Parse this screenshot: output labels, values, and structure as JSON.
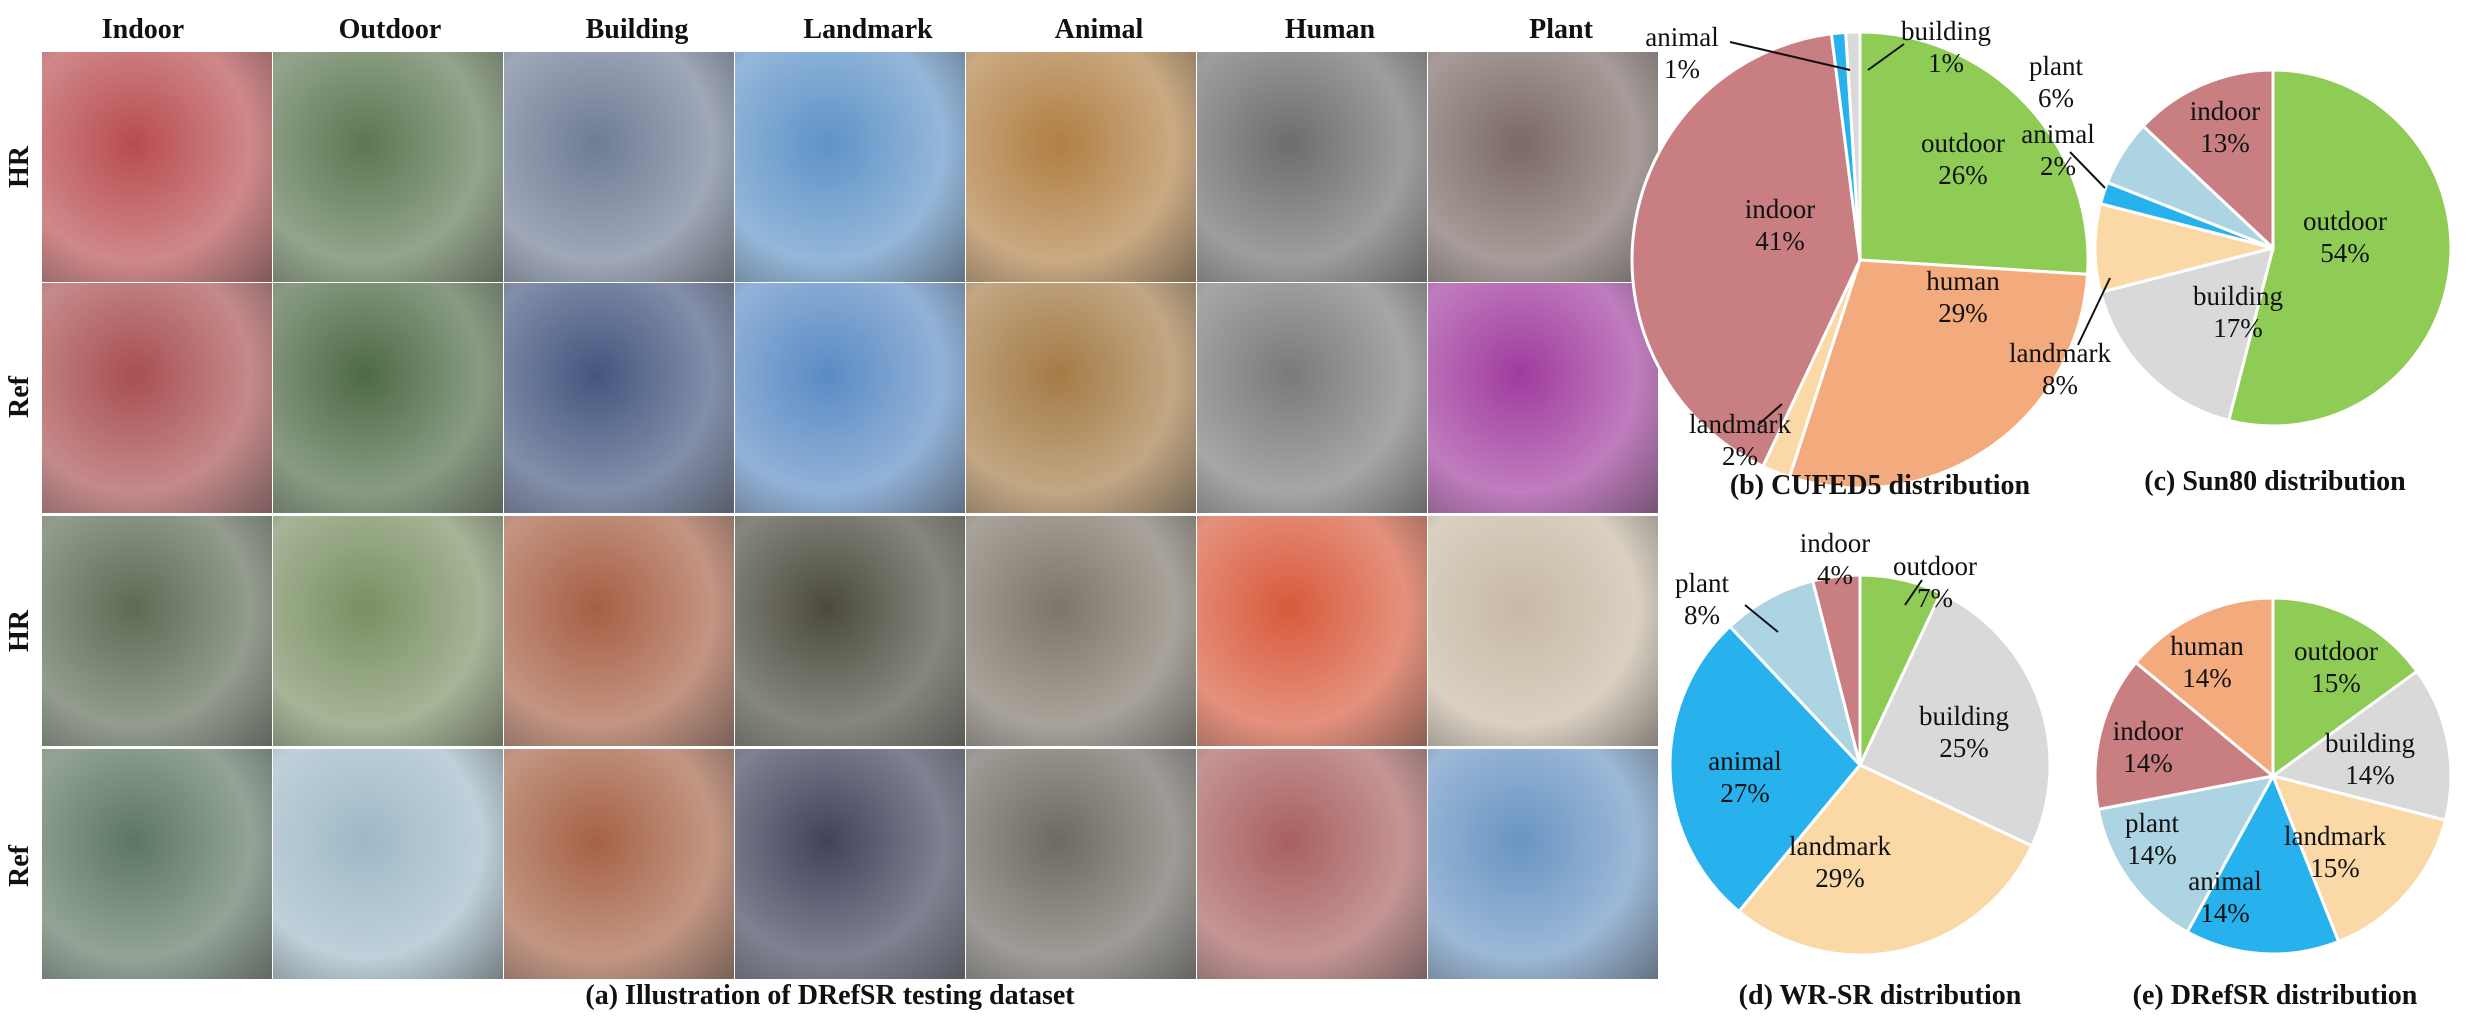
{
  "figure": {
    "columns": [
      "Indoor",
      "Outdoor",
      "Building",
      "Landmark",
      "Animal",
      "Human",
      "Plant"
    ],
    "rows": [
      "HR",
      "Ref",
      "HR",
      "Ref"
    ],
    "caption_a": "(a) Illustration of DRefSR testing dataset",
    "caption_b": "(b) CUFED5 distribution",
    "caption_c": "(c) Sun80 distribution",
    "caption_d": "(d) WR-SR distribution",
    "caption_e": "(e) DRefSR distribution",
    "thumb_colors": [
      [
        "#b84c4f",
        "#5d7752",
        "#6f7c95",
        "#5f93c7",
        "#b07f44",
        "#6d6d6d",
        "#7b6a66"
      ],
      [
        "#a84f51",
        "#4e6a45",
        "#44567f",
        "#5b8bc4",
        "#a47b46",
        "#7a7a78",
        "#a03b9e"
      ],
      [
        "#5d6b55",
        "#7a8f63",
        "#a65f44",
        "#4b4a3d",
        "#7d7568",
        "#d85a3c",
        "#c7b9a4"
      ],
      [
        "#5d7663",
        "#9fb9c7",
        "#a56245",
        "#40435b",
        "#6e6a62",
        "#a86060",
        "#6a95c3"
      ]
    ]
  },
  "chart_data": [
    {
      "type": "pie",
      "title": "(b) CUFED5 distribution",
      "slices": [
        {
          "label": "outdoor",
          "value": 26,
          "color": "#8ecc56"
        },
        {
          "label": "human",
          "value": 29,
          "color": "#f3aa7c"
        },
        {
          "label": "landmark",
          "value": 2,
          "color": "#fbd9a6"
        },
        {
          "label": "indoor",
          "value": 41,
          "color": "#c97f82"
        },
        {
          "label": "animal",
          "value": 1,
          "color": "#27b2ee"
        },
        {
          "label": "building",
          "value": 1,
          "color": "#d9d9d9"
        }
      ]
    },
    {
      "type": "pie",
      "title": "(c) Sun80 distribution",
      "slices": [
        {
          "label": "outdoor",
          "value": 54,
          "color": "#8ecc56"
        },
        {
          "label": "building",
          "value": 17,
          "color": "#d9d9d9"
        },
        {
          "label": "landmark",
          "value": 8,
          "color": "#fbd9a6"
        },
        {
          "label": "animal",
          "value": 2,
          "color": "#27b2ee"
        },
        {
          "label": "plant",
          "value": 6,
          "color": "#acd4e2"
        },
        {
          "label": "indoor",
          "value": 13,
          "color": "#c97f82"
        }
      ]
    },
    {
      "type": "pie",
      "title": "(d) WR-SR distribution",
      "slices": [
        {
          "label": "outdoor",
          "value": 7,
          "color": "#8ecc56"
        },
        {
          "label": "building",
          "value": 25,
          "color": "#d9d9d9"
        },
        {
          "label": "landmark",
          "value": 29,
          "color": "#fbd9a6"
        },
        {
          "label": "animal",
          "value": 27,
          "color": "#27b2ee"
        },
        {
          "label": "plant",
          "value": 8,
          "color": "#acd4e2"
        },
        {
          "label": "indoor",
          "value": 4,
          "color": "#c97f82"
        }
      ]
    },
    {
      "type": "pie",
      "title": "(e) DRefSR distribution",
      "slices": [
        {
          "label": "outdoor",
          "value": 15,
          "color": "#8ecc56"
        },
        {
          "label": "building",
          "value": 14,
          "color": "#d9d9d9"
        },
        {
          "label": "landmark",
          "value": 15,
          "color": "#fbd9a6"
        },
        {
          "label": "animal",
          "value": 14,
          "color": "#27b2ee"
        },
        {
          "label": "plant",
          "value": 14,
          "color": "#acd4e2"
        },
        {
          "label": "indoor",
          "value": 14,
          "color": "#c97f82"
        },
        {
          "label": "human",
          "value": 14,
          "color": "#f3aa7c"
        }
      ]
    }
  ]
}
